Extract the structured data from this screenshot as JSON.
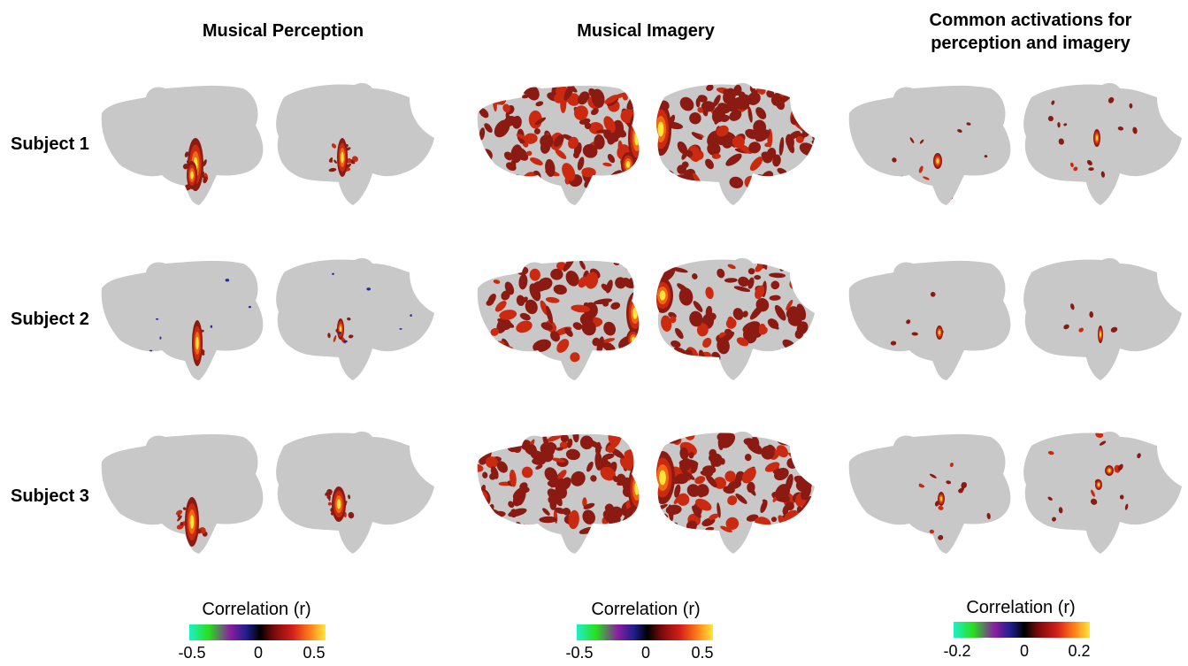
{
  "columns": [
    {
      "title": "Musical Perception"
    },
    {
      "title": "Musical Imagery"
    },
    {
      "title_line1": "Common activations for",
      "title_line2": "perception and imagery"
    }
  ],
  "rows": [
    {
      "label": "Subject 1"
    },
    {
      "label": "Subject 2"
    },
    {
      "label": "Subject 3"
    }
  ],
  "colorbars": [
    {
      "label": "Correlation (r)",
      "ticks": [
        "-0.5",
        "0",
        "0.5"
      ]
    },
    {
      "label": "Correlation (r)",
      "ticks": [
        "-0.5",
        "0",
        "0.5"
      ]
    },
    {
      "label": "Correlation (r)",
      "ticks": [
        "-0.2",
        "0",
        "0.2"
      ]
    }
  ],
  "colors": {
    "brain": "#c8c8c8",
    "act_dark": "#8b1a12",
    "act_red": "#cc2a10",
    "act_orange": "#f06a12",
    "act_yellow": "#ffe53a",
    "neg_blue": "#2a2a9a"
  }
}
